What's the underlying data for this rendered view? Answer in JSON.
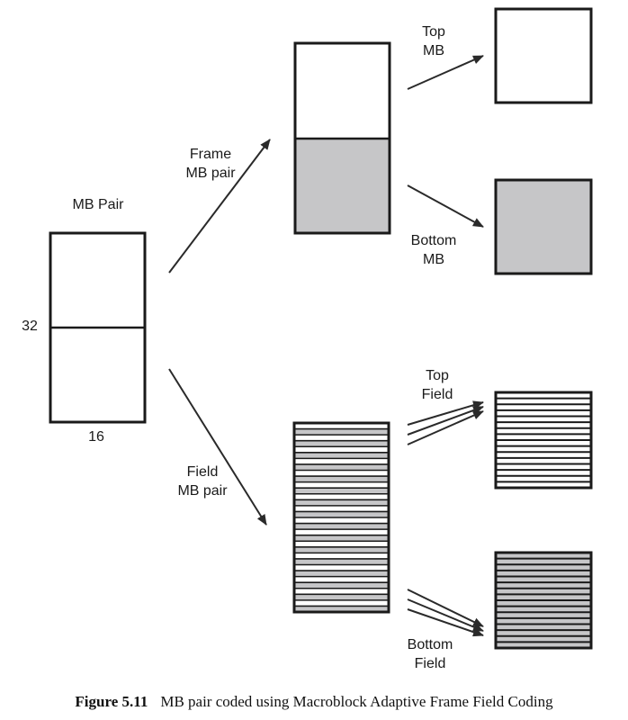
{
  "colors": {
    "gray_fill": "#c6c6c8",
    "stroke": "#1a1a1a",
    "arrow": "#2a2a2a"
  },
  "labels": {
    "mb_pair": "MB Pair",
    "height": "32",
    "width": "16",
    "frame_line1": "Frame",
    "frame_line2": "MB pair",
    "field_line1": "Field",
    "field_line2": "MB pair",
    "top_mb_line1": "Top",
    "top_mb_line2": "MB",
    "bottom_mb_line1": "Bottom",
    "bottom_mb_line2": "MB",
    "top_field_line1": "Top",
    "top_field_line2": "Field",
    "bottom_field_line1": "Bottom",
    "bottom_field_line2": "Field"
  },
  "caption": {
    "number": "Figure 5.11",
    "text": "MB pair coded using Macroblock Adaptive Frame Field Coding"
  }
}
